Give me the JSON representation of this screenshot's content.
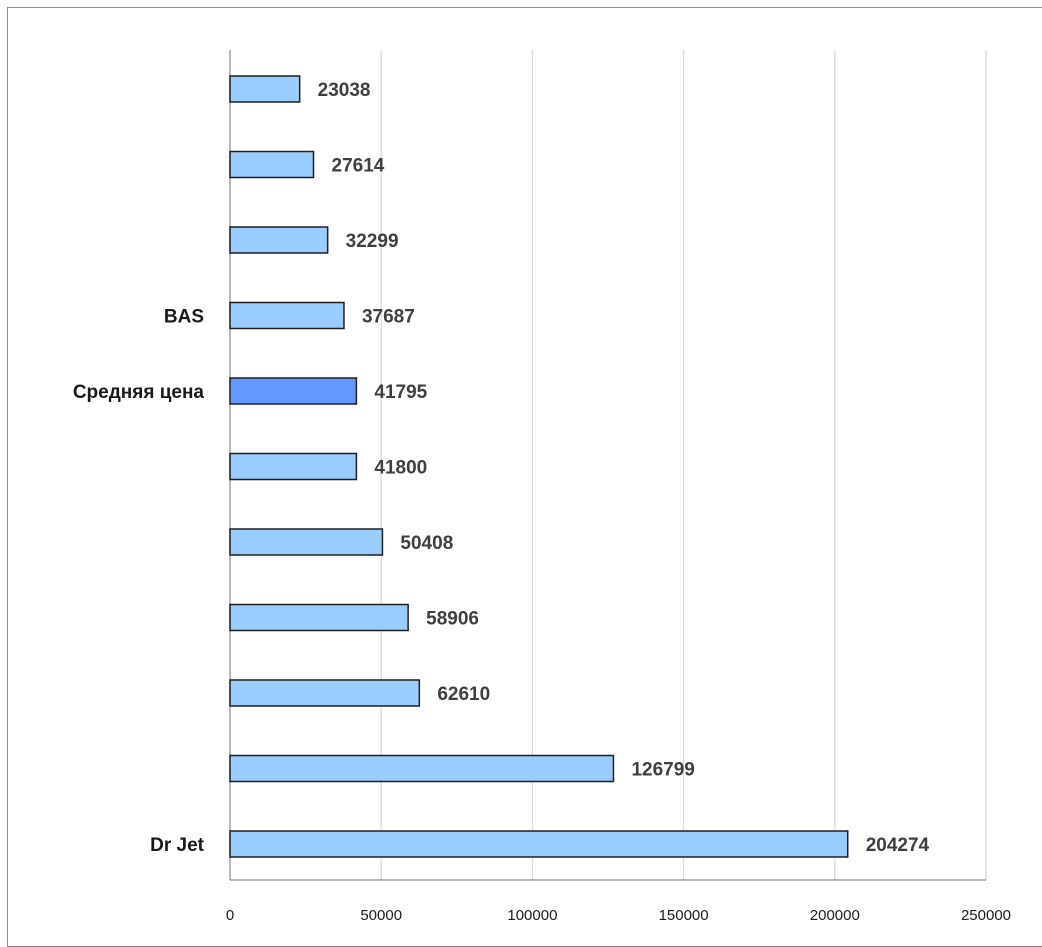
{
  "chart_data": {
    "type": "bar",
    "orientation": "horizontal",
    "title": "",
    "xlabel": "",
    "ylabel": "",
    "categories": [
      "",
      "",
      "",
      "BAS",
      "Средняя цена",
      "",
      "",
      "",
      "",
      "",
      "Dr Jet"
    ],
    "values": [
      23038,
      27614,
      32299,
      37687,
      41795,
      41800,
      50408,
      58906,
      62610,
      126799,
      204274
    ],
    "value_labels": [
      "23038",
      "27614",
      "32299",
      "37687",
      "41795",
      "41800",
      "50408",
      "58906",
      "62610",
      "126799",
      "204274"
    ],
    "highlight_index": 4,
    "xlim": [
      0,
      250000
    ],
    "x_ticks": [
      0,
      50000,
      100000,
      150000,
      200000,
      250000
    ],
    "x_tick_labels": [
      "0",
      "50000",
      "100000",
      "150000",
      "200000",
      "250000"
    ],
    "grid": "vertical",
    "legend": "none"
  },
  "colors": {
    "bar": "#99ccff",
    "bar_highlight": "#6699ff",
    "bar_edge": "#1f1f1f",
    "grid": "#d9d9d9",
    "axis": "#8c8c8c"
  }
}
